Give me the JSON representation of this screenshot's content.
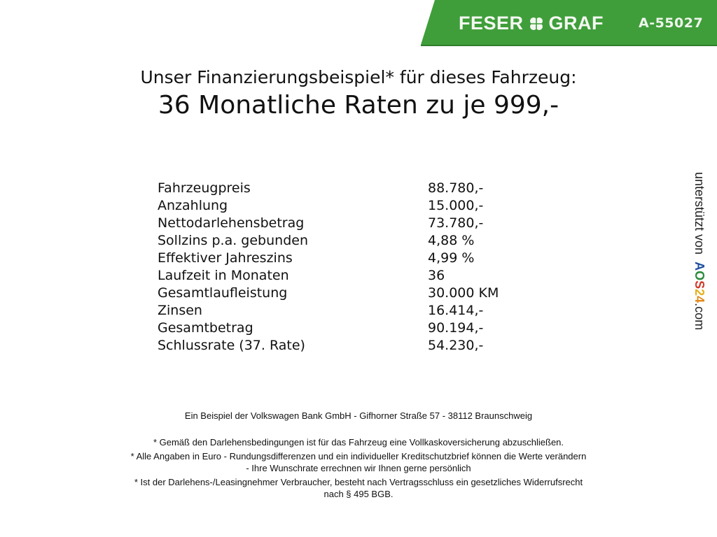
{
  "header": {
    "brand": "FESER",
    "brand2": "GRAF",
    "vehicle_code": "A-55027",
    "brand_color": "#3f9e3a",
    "logo_icon": "clover-icon"
  },
  "title": {
    "line1": "Unser Finanzierungsbeispiel* für dieses Fahrzeug:",
    "line2": "36 Monatliche Raten zu je 999,-"
  },
  "financing": [
    {
      "label": "Fahrzeugpreis",
      "value": "88.780,-"
    },
    {
      "label": "Anzahlung",
      "value": "15.000,-"
    },
    {
      "label": "Nettodarlehensbetrag",
      "value": "73.780,-"
    },
    {
      "label": "Sollzins p.a. gebunden",
      "value": "4,88 %"
    },
    {
      "label": "Effektiver Jahreszins",
      "value": "4,99 %"
    },
    {
      "label": "Laufzeit in Monaten",
      "value": "36"
    },
    {
      "label": "Gesamtlaufleistung",
      "value": "30.000 KM"
    },
    {
      "label": "Zinsen",
      "value": "16.414,-"
    },
    {
      "label": "Gesamtbetrag",
      "value": "90.194,-"
    },
    {
      "label": "Schlussrate (37. Rate)",
      "value": "54.230,-"
    }
  ],
  "side": {
    "text": "unterstützt von",
    "logo": "AOS24",
    "suffix": ".com"
  },
  "footer": {
    "bank": "Ein Beispiel der Volkswagen Bank GmbH - Gifhorner Straße 57 - 38112 Braunschweig",
    "notes": [
      "* Gemäß den Darlehensbedingungen ist für das Fahrzeug eine Vollkaskoversicherung abzuschließen.",
      "* Alle Angaben in Euro - Rundungsdifferenzen und ein individueller Kreditschutzbrief können die Werte verändern",
      "- Ihre Wunschrate errechnen wir Ihnen gerne persönlich",
      "* Ist der Darlehens-/Leasingnehmer Verbraucher, besteht nach Vertragsschluss ein gesetzliches Widerrufsrecht",
      "nach § 495 BGB."
    ]
  }
}
